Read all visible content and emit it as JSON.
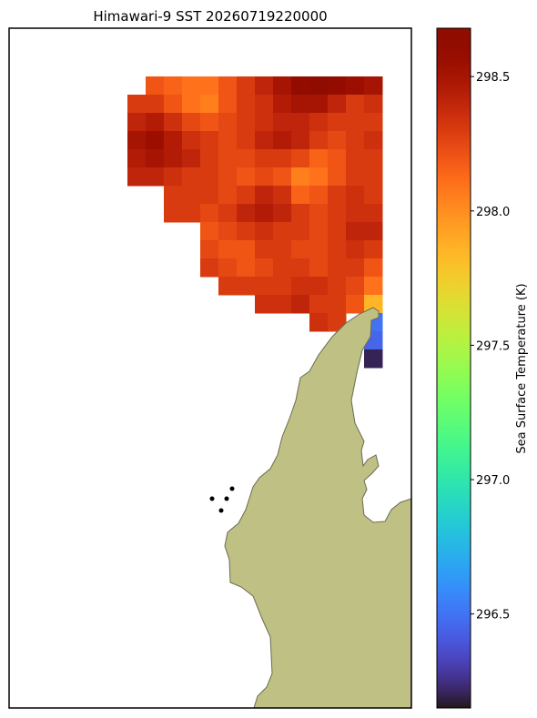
{
  "chart_data": {
    "type": "heatmap",
    "title": "Himawari-9 SST 20260719220000",
    "colorbar_label": "Sea Surface Temperature (K)",
    "colormap": "turbo",
    "clim": [
      296.15,
      298.68
    ],
    "cticks": [
      298.5,
      {
        "value": 298.0,
        "label": "298.0"
      },
      297.5,
      {
        "value": 297.0,
        "label": "297.0"
      },
      296.5
    ],
    "values": [
      [
        null,
        298.2,
        298.15,
        298.1,
        298.1,
        298.2,
        298.3,
        298.4,
        298.5,
        298.6,
        298.65,
        298.6,
        298.55,
        298.5
      ],
      [
        298.3,
        298.3,
        298.2,
        298.1,
        298.05,
        298.2,
        298.3,
        298.35,
        298.45,
        298.5,
        298.5,
        298.4,
        298.3,
        298.35
      ],
      [
        298.4,
        298.45,
        298.35,
        298.25,
        298.2,
        298.25,
        298.3,
        298.35,
        298.4,
        298.4,
        298.35,
        298.3,
        298.3,
        298.3
      ],
      [
        298.5,
        298.55,
        298.45,
        298.35,
        298.3,
        298.25,
        298.3,
        298.4,
        298.45,
        298.4,
        298.3,
        298.25,
        298.3,
        298.35
      ],
      [
        298.45,
        298.5,
        298.45,
        298.4,
        298.3,
        298.25,
        298.25,
        298.3,
        298.3,
        298.25,
        298.15,
        298.2,
        298.3,
        298.3
      ],
      [
        298.4,
        298.4,
        298.35,
        298.3,
        298.3,
        298.25,
        298.2,
        298.25,
        298.2,
        298.05,
        298.1,
        298.2,
        298.3,
        298.3
      ],
      [
        null,
        null,
        298.3,
        298.3,
        298.3,
        298.25,
        298.3,
        298.4,
        298.35,
        298.15,
        298.2,
        298.3,
        298.35,
        298.3
      ],
      [
        null,
        null,
        298.3,
        298.3,
        298.25,
        298.3,
        298.4,
        298.45,
        298.4,
        298.3,
        298.25,
        298.3,
        298.35,
        298.35
      ],
      [
        null,
        null,
        null,
        null,
        298.2,
        298.25,
        298.3,
        298.35,
        298.3,
        298.3,
        298.25,
        298.3,
        298.4,
        298.4
      ],
      [
        null,
        null,
        null,
        null,
        298.25,
        298.2,
        298.2,
        298.3,
        298.3,
        298.25,
        298.25,
        298.3,
        298.35,
        298.3
      ],
      [
        null,
        null,
        null,
        null,
        298.3,
        298.25,
        298.2,
        298.25,
        298.3,
        298.3,
        298.25,
        298.3,
        298.3,
        298.2
      ],
      [
        null,
        null,
        null,
        null,
        null,
        298.3,
        298.3,
        298.3,
        298.3,
        298.35,
        298.35,
        298.3,
        298.25,
        298.1
      ],
      [
        null,
        null,
        null,
        null,
        null,
        null,
        null,
        298.35,
        298.35,
        298.4,
        298.3,
        298.3,
        298.2,
        297.85
      ],
      [
        null,
        null,
        null,
        null,
        null,
        null,
        null,
        null,
        null,
        null,
        298.35,
        298.3,
        null,
        296.5
      ],
      [
        null,
        null,
        null,
        null,
        null,
        null,
        null,
        null,
        null,
        null,
        null,
        null,
        null,
        296.45
      ],
      [
        null,
        null,
        null,
        null,
        null,
        null,
        null,
        null,
        null,
        null,
        null,
        null,
        null,
        296.2
      ]
    ]
  }
}
